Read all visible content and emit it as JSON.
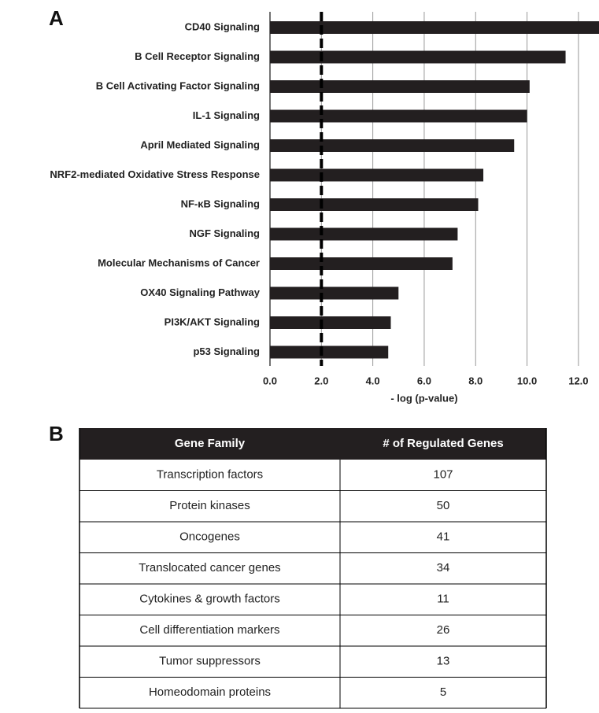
{
  "panel_a": "A",
  "chart_data": {
    "type": "bar",
    "orientation": "horizontal",
    "categories": [
      "CD40 Signaling",
      "B Cell Receptor Signaling",
      "B Cell Activating Factor Signaling",
      "IL-1 Signaling",
      "April Mediated Signaling",
      "NRF2-mediated Oxidative Stress Response",
      "NF-κB Signaling",
      "NGF Signaling",
      "Molecular Mechanisms of Cancer",
      "OX40 Signaling Pathway",
      "PI3K/AKT Signaling",
      "p53 Signaling"
    ],
    "values": [
      12.8,
      11.5,
      10.1,
      10.0,
      9.5,
      8.3,
      8.1,
      7.3,
      7.1,
      5.0,
      4.7,
      4.6
    ],
    "color": "#231f20",
    "xlabel": "- log (p-value)",
    "xlim": [
      0,
      12.8
    ],
    "xticks": [
      {
        "value": 0,
        "label": "0.0"
      },
      {
        "value": 2,
        "label": "2.0"
      },
      {
        "value": 4,
        "label": "4.0"
      },
      {
        "value": 6,
        "label": "6.0"
      },
      {
        "value": 8,
        "label": "8.0"
      },
      {
        "value": 10,
        "label": "10.0"
      },
      {
        "value": 12,
        "label": "12.0"
      }
    ],
    "threshold": 2,
    "grid": true
  },
  "panel_b": "B",
  "table": {
    "header": [
      "Gene Family",
      "# of Regulated Genes"
    ],
    "rows": [
      [
        "Transcription factors",
        107
      ],
      [
        "Protein kinases",
        50
      ],
      [
        "Oncogenes",
        41
      ],
      [
        "Translocated cancer genes",
        34
      ],
      [
        "Cytokines & growth factors",
        11
      ],
      [
        "Cell differentiation markers",
        26
      ],
      [
        "Tumor suppressors",
        13
      ],
      [
        "Homeodomain proteins",
        5
      ]
    ]
  }
}
